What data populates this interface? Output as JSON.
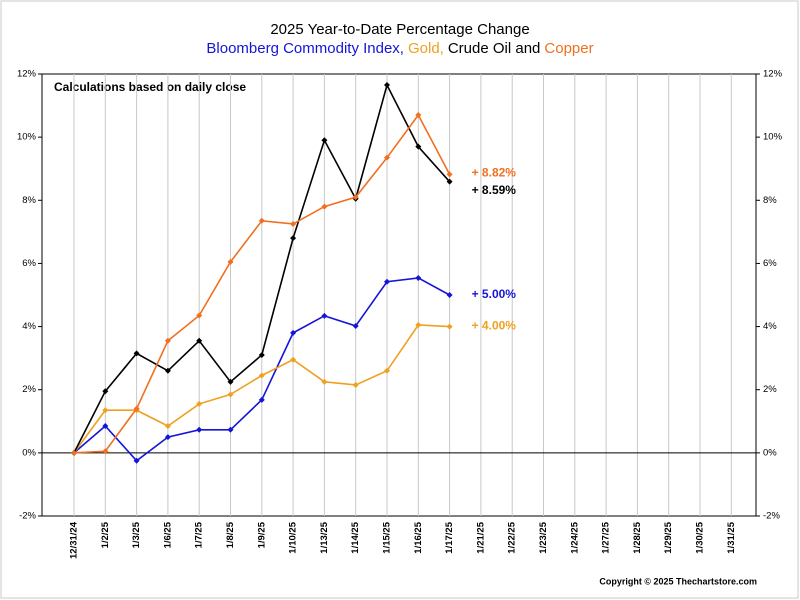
{
  "chart_data": {
    "type": "line",
    "title": "2025 Year-to-Date Percentage Change",
    "subtitle_parts": [
      {
        "text": "Bloomberg Commodity Index,",
        "color": "#1515d8"
      },
      {
        "text": "Gold,",
        "color": "#f0a020"
      },
      {
        "text": "Crude Oil and",
        "color": "#000000"
      },
      {
        "text": "Copper",
        "color": "#f07020"
      }
    ],
    "annotations": [
      "Calculations based on daily close",
      "Copyright © 2025 Thechartstore.com"
    ],
    "categories": [
      "12/31/24",
      "1/2/25",
      "1/3/25",
      "1/6/25",
      "1/7/25",
      "1/8/25",
      "1/9/25",
      "1/10/25",
      "1/13/25",
      "1/14/25",
      "1/15/25",
      "1/16/25",
      "1/17/25",
      "1/21/25",
      "1/22/25",
      "1/23/25",
      "1/24/25",
      "1/27/25",
      "1/28/25",
      "1/29/25",
      "1/30/25",
      "1/31/25"
    ],
    "series": [
      {
        "color": "#1515d8",
        "values": [
          0,
          0.85,
          -0.25,
          0.5,
          0.73,
          0.73,
          1.68,
          3.8,
          4.34,
          4.02,
          5.42,
          5.54,
          5.0,
          null,
          null,
          null,
          null,
          null,
          null,
          null,
          null,
          null
        ],
        "value_labels": [
          null,
          null,
          null,
          null,
          null,
          null,
          null,
          null,
          null,
          null,
          null,
          null,
          "+ 5.00%",
          null,
          null,
          null,
          null,
          null,
          null,
          null,
          null,
          null
        ]
      },
      {
        "color": "#f0a020",
        "values": [
          0,
          1.35,
          1.35,
          0.85,
          1.55,
          1.85,
          2.45,
          2.95,
          2.25,
          2.15,
          2.6,
          4.05,
          4.0,
          null,
          null,
          null,
          null,
          null,
          null,
          null,
          null,
          null
        ],
        "value_labels": [
          null,
          null,
          null,
          null,
          null,
          null,
          null,
          null,
          null,
          null,
          null,
          null,
          "+ 4.00%",
          null,
          null,
          null,
          null,
          null,
          null,
          null,
          null,
          null
        ]
      },
      {
        "color": "#000000",
        "values": [
          0,
          1.95,
          3.15,
          2.6,
          3.55,
          2.25,
          3.1,
          6.8,
          9.9,
          8.05,
          11.65,
          9.7,
          8.59,
          null,
          null,
          null,
          null,
          null,
          null,
          null,
          null,
          null
        ],
        "value_labels": [
          null,
          null,
          null,
          null,
          null,
          null,
          null,
          null,
          null,
          null,
          null,
          null,
          "+ 8.59%",
          null,
          null,
          null,
          null,
          null,
          null,
          null,
          null,
          null
        ]
      },
      {
        "color": "#f07020",
        "values": [
          0,
          0.05,
          1.4,
          3.55,
          4.35,
          6.05,
          7.35,
          7.25,
          7.8,
          8.1,
          9.35,
          10.7,
          8.82,
          null,
          null,
          null,
          null,
          null,
          null,
          null,
          null,
          null
        ],
        "value_labels": [
          null,
          null,
          null,
          null,
          null,
          null,
          null,
          null,
          null,
          null,
          null,
          null,
          "+ 8.82%",
          null,
          null,
          null,
          null,
          null,
          null,
          null,
          null,
          null
        ]
      }
    ],
    "ylim": [
      -2,
      12
    ],
    "yticks": [
      {
        "value": -2,
        "label": "-2%"
      },
      {
        "value": 0,
        "label": "0%"
      },
      {
        "value": 2,
        "label": "2%"
      },
      {
        "value": 4,
        "label": "4%"
      },
      {
        "value": 6,
        "label": "6%"
      },
      {
        "value": 8,
        "label": "8%"
      },
      {
        "value": 10,
        "label": "10%"
      },
      {
        "value": 12,
        "label": "12%"
      }
    ],
    "x_grid": true,
    "right_axis": true
  }
}
